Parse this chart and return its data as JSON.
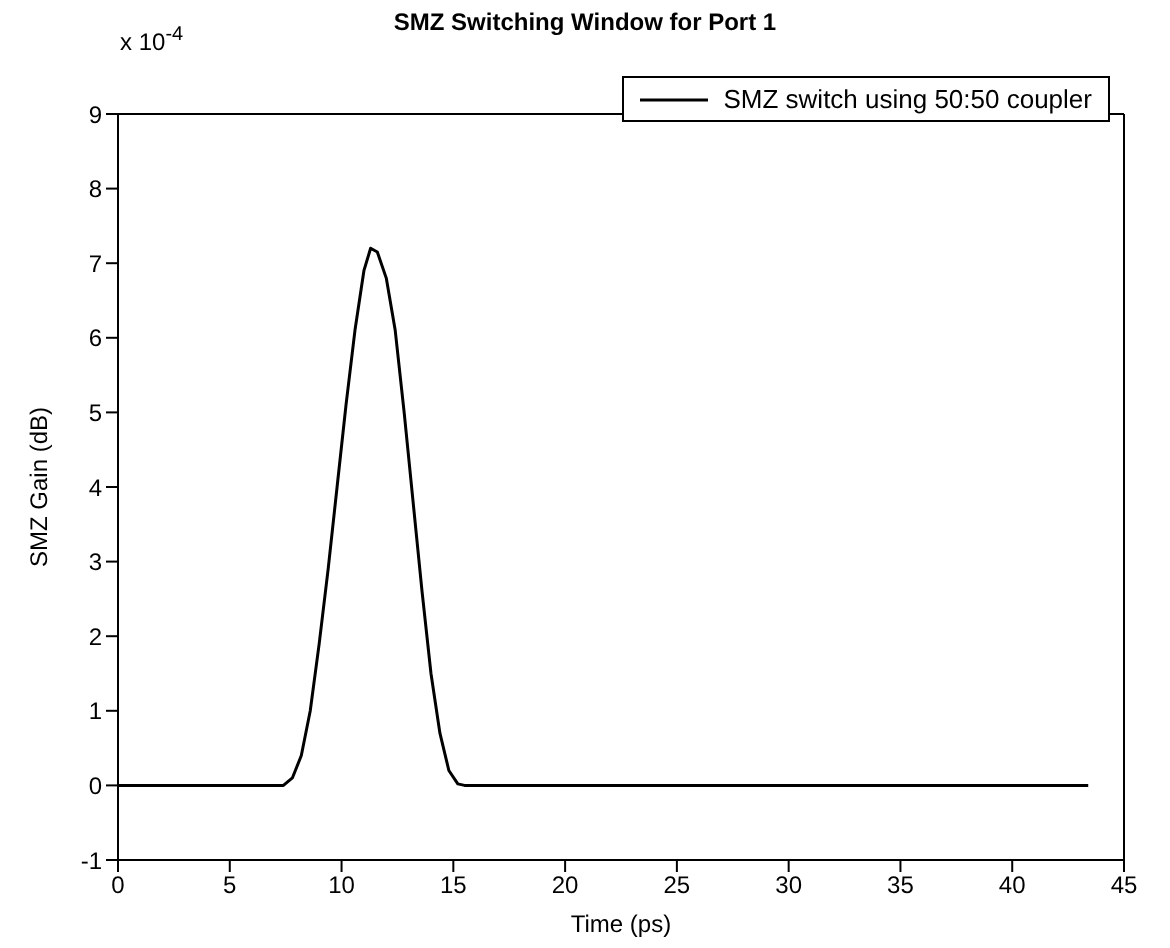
{
  "chart_data": {
    "type": "line",
    "title": "SMZ Switching Window for Port 1",
    "xlabel": "Time (ps)",
    "ylabel": "SMZ Gain (dB)",
    "annotations": [
      "x 10$^{-4}$"
    ],
    "x": [
      0,
      7.4,
      7.8,
      8.2,
      8.6,
      9.0,
      9.4,
      9.8,
      10.2,
      10.6,
      11.0,
      11.3,
      11.6,
      12.0,
      12.4,
      12.8,
      13.2,
      13.6,
      14.0,
      14.4,
      14.8,
      15.2,
      15.5,
      43.4
    ],
    "series": [
      {
        "name": "SMZ switch using 50:50 coupler",
        "color": "#000000",
        "values": [
          0,
          0,
          0.1,
          0.4,
          1.0,
          1.9,
          2.9,
          4.0,
          5.1,
          6.1,
          6.9,
          7.2,
          7.15,
          6.8,
          6.1,
          5.0,
          3.8,
          2.6,
          1.5,
          0.7,
          0.2,
          0.02,
          0,
          0
        ]
      }
    ],
    "xlim": [
      0,
      45
    ],
    "xticks": [
      0,
      5,
      10,
      15,
      20,
      25,
      30,
      35,
      40,
      45
    ],
    "ylim": [
      -1,
      9
    ],
    "yticks": [
      -1,
      0,
      1,
      2,
      3,
      4,
      5,
      6,
      7,
      8,
      9
    ],
    "grid": false,
    "legend": "top right",
    "marker": "none",
    "line_style": "solid"
  }
}
